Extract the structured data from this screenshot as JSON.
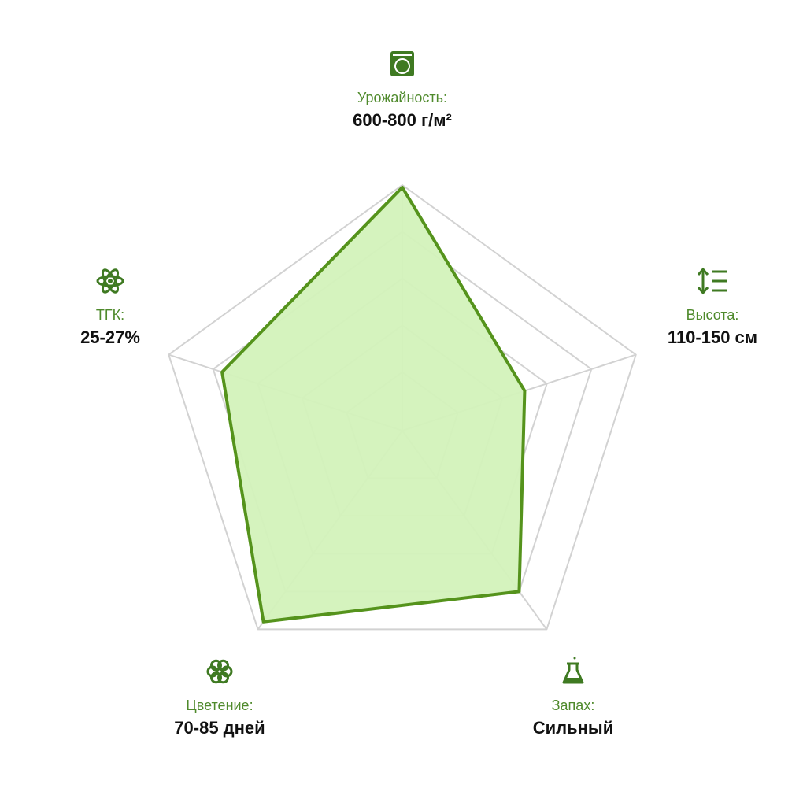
{
  "chart_data": {
    "type": "radar",
    "categories": [
      "Урожайность:",
      "Высота:",
      "Запах:",
      "Цветение:",
      "ТГК:"
    ],
    "category_values": [
      "600-800 г/м²",
      "110-150 см",
      "Сильный",
      "70-85 дней",
      "25-27%"
    ],
    "values": [
      99,
      50,
      80,
      96,
      76
    ],
    "color": "#55931c",
    "fill": "#d3f2bb",
    "rlim": [
      -5,
      100
    ],
    "rticks": [
      20,
      40,
      60,
      80,
      100
    ],
    "grid": true
  }
}
